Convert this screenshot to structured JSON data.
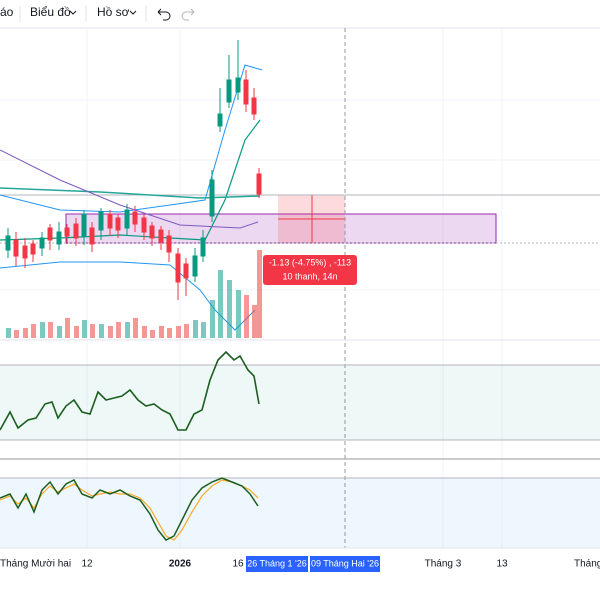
{
  "toolbar": {
    "items": [
      "áo",
      "Biểu đồ",
      "Hồ sơ"
    ]
  },
  "measure": {
    "change": "-1.13 (-4.75%) , -113",
    "span": "10 thanh, 14n"
  },
  "x_axis": {
    "labels": [
      "Tháng Mười hai",
      "12",
      "2026",
      "16",
      "Tháng 3",
      "13",
      "Tháng"
    ],
    "highlights": [
      "26 Tháng 1 '26",
      "09 Tháng Hai '26"
    ]
  }
}
